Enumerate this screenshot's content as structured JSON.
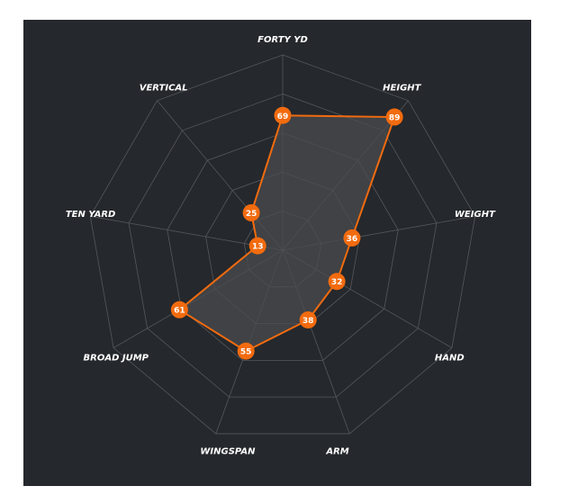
{
  "chart_data": {
    "type": "radar",
    "categories": [
      "FORTY YD",
      "HEIGHT",
      "WEIGHT",
      "HAND",
      "ARM",
      "WINGSPAN",
      "BROAD JUMP",
      "TEN YARD",
      "VERTICAL"
    ],
    "values": [
      69,
      89,
      36,
      32,
      38,
      55,
      61,
      13,
      25
    ],
    "range": [
      0,
      100
    ],
    "grid_levels": 5,
    "grid": true,
    "colors": {
      "background": "#25282c",
      "series": "#f26b0f",
      "fill": "#4a4b4e",
      "grid": "#55585c"
    }
  }
}
